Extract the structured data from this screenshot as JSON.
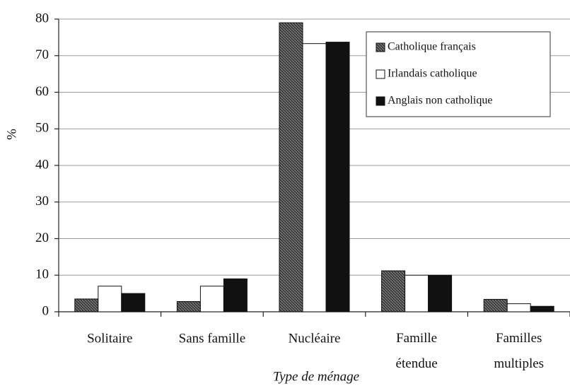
{
  "chart_data": {
    "type": "bar",
    "x_label": "Type de ménage",
    "y_label": "%",
    "categories": [
      "Solitaire",
      "Sans famille",
      "Nucléaire",
      "Famille étendue",
      "Familles multiples"
    ],
    "series": [
      {
        "name": "Catholique français",
        "color": "#4a4a4a",
        "values": [
          3.5,
          2.8,
          79,
          11.2,
          3.4
        ]
      },
      {
        "name": "Irlandais catholique",
        "color": "#ffffff",
        "values": [
          7,
          7,
          73.3,
          10,
          2.2
        ]
      },
      {
        "name": "Anglais non catholique",
        "color": "#111111",
        "values": [
          5,
          9,
          73.7,
          10,
          1.5
        ]
      }
    ],
    "ylim": [
      0,
      80
    ],
    "yticks": [
      0,
      10,
      20,
      30,
      40,
      50,
      60,
      70,
      80
    ],
    "grid": true,
    "legend": "top right"
  }
}
